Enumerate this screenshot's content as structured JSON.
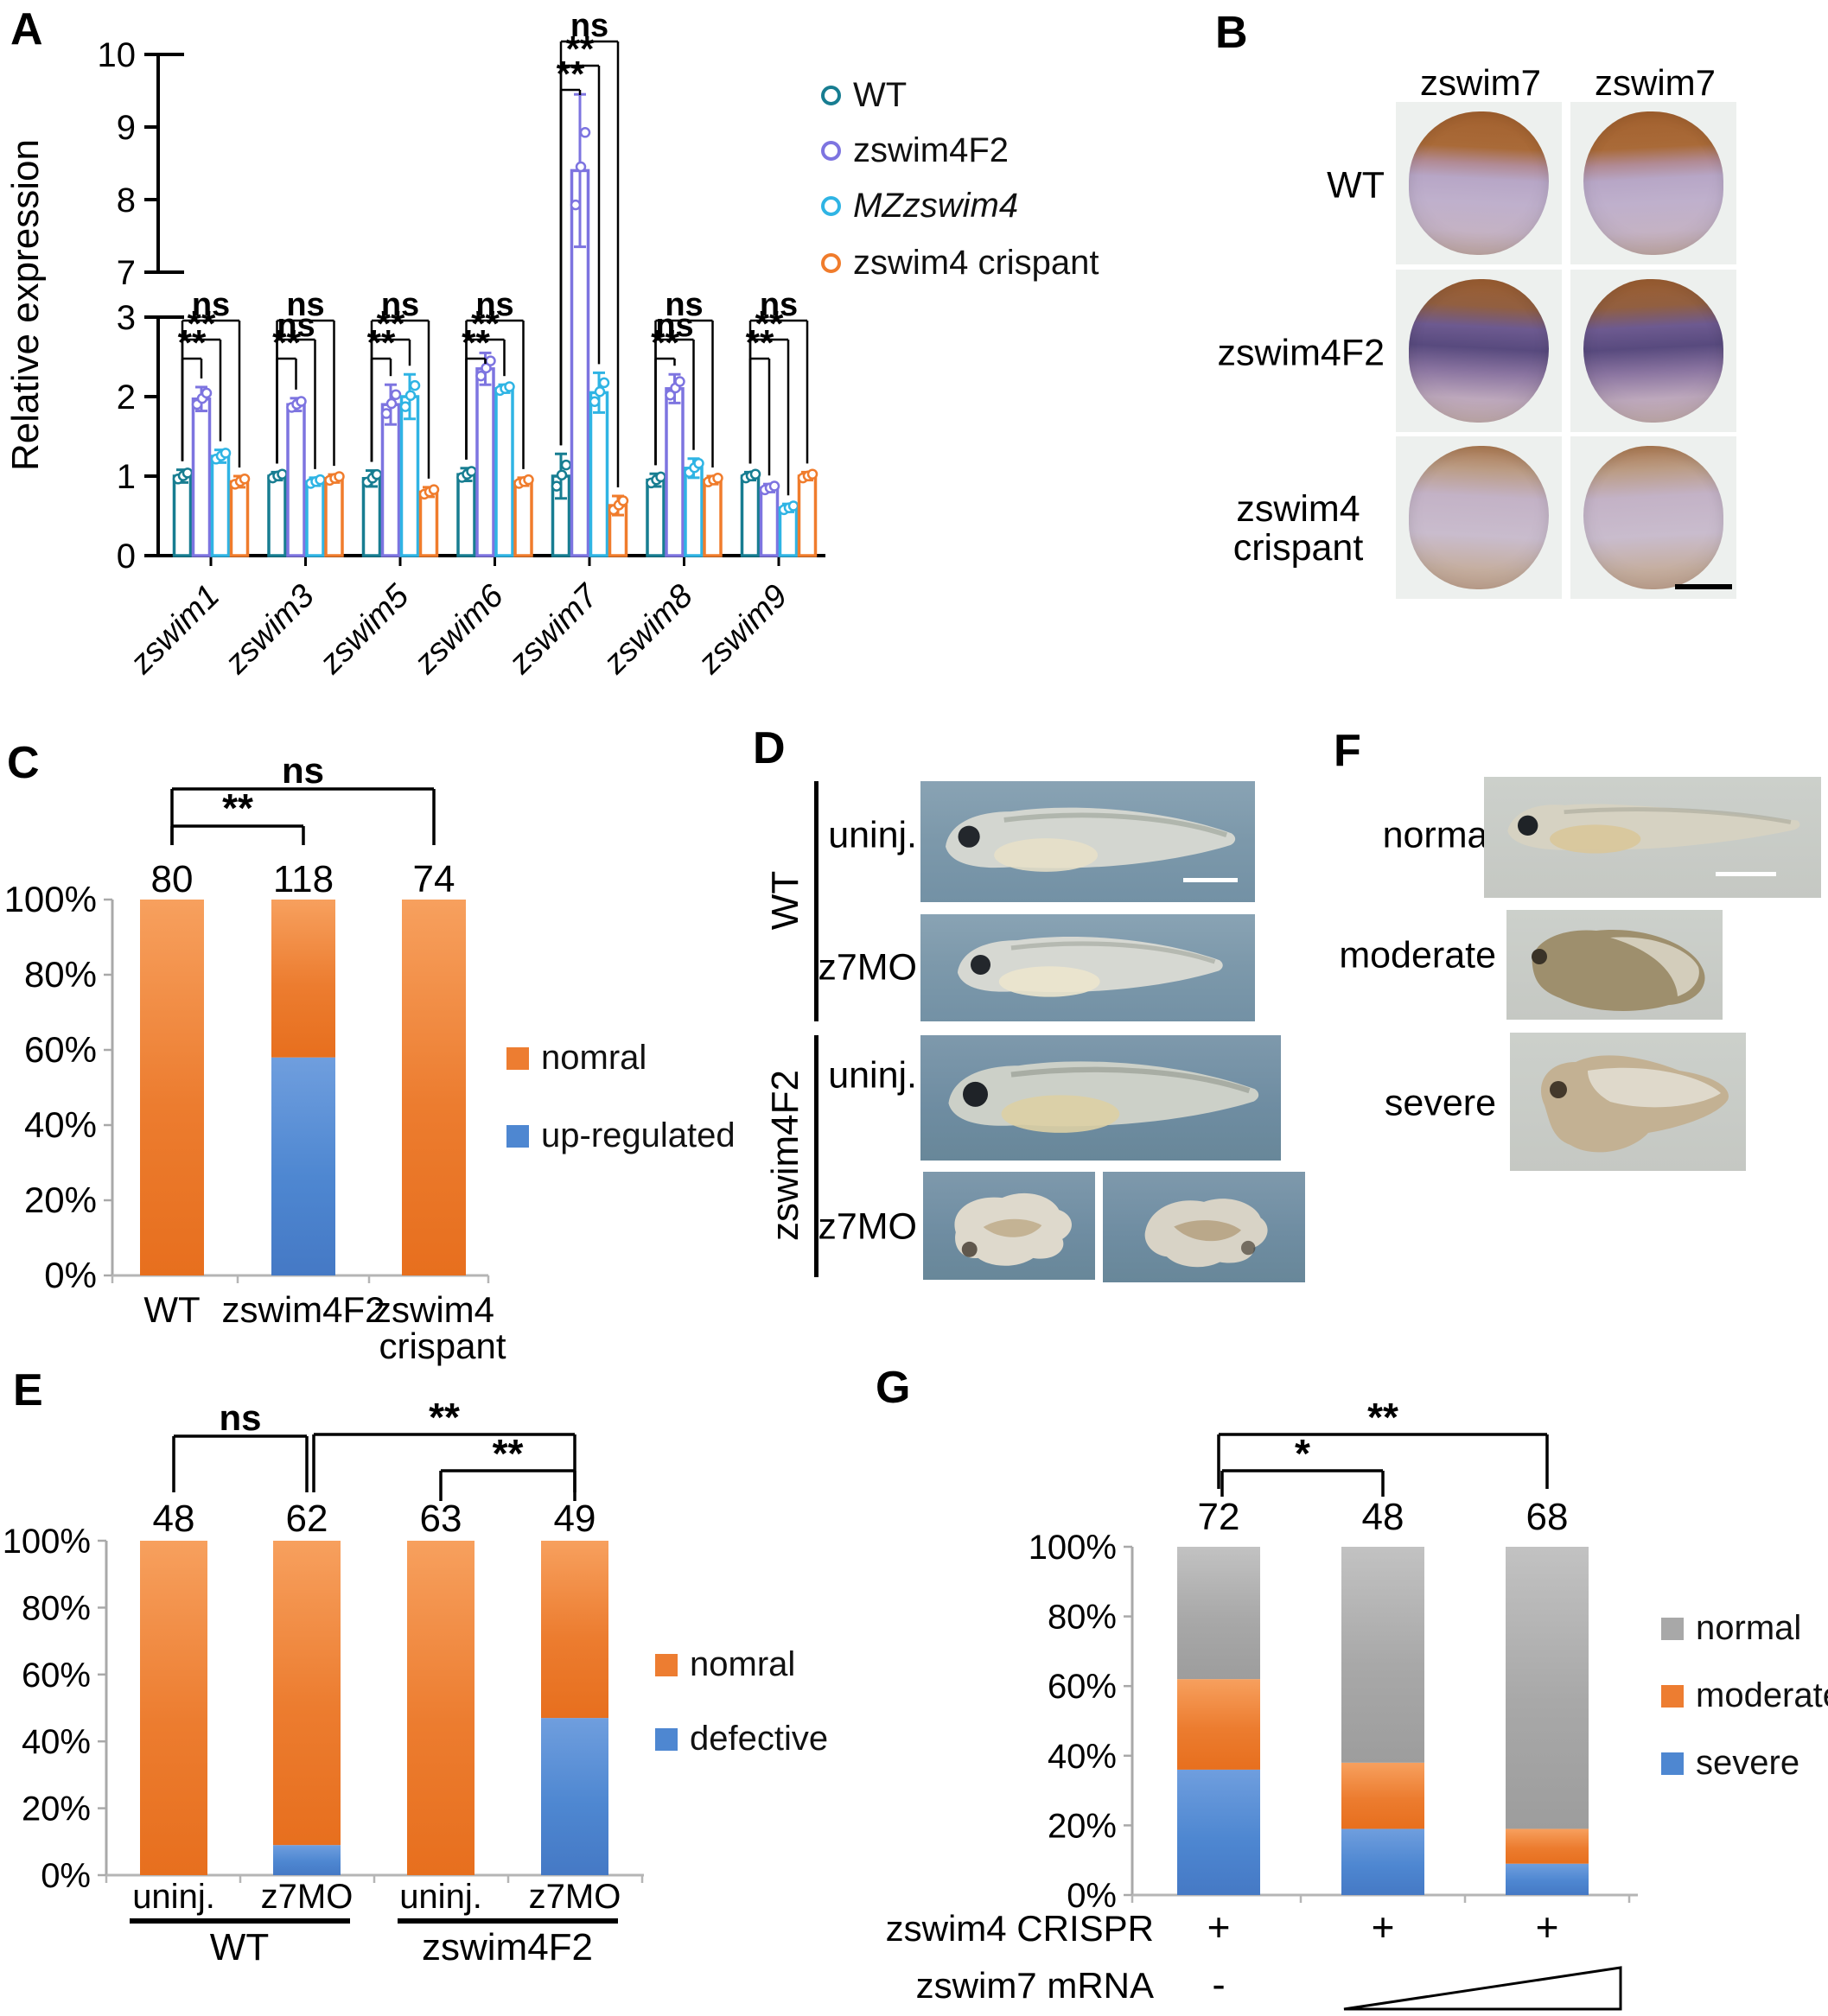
{
  "figure": {
    "panel_labels": {
      "a": "A",
      "b": "B",
      "c": "C",
      "d": "D",
      "e": "E",
      "f": "F",
      "g": "G"
    }
  },
  "colors": {
    "wt_teal": "#177d91",
    "zswim4f2_purple": "#7d74e0",
    "mzzswim4_cyan": "#2fb4e4",
    "crispant_orange": "#f07c2c",
    "bar_orange": "#ed7d31",
    "bar_blue": "#4e87d1",
    "bar_gray": "#a8a8a8"
  },
  "panel_a": {
    "ylabel": "Relative expression",
    "legend": [
      {
        "label": "WT",
        "color": "#177d91",
        "italic": false
      },
      {
        "label": "zswim4F2",
        "color": "#7d74e0",
        "italic": false
      },
      {
        "label": "MZzswim4",
        "color": "#2fb4e4",
        "italic": true
      },
      {
        "label": "zswim4 crispant",
        "color": "#f07c2c",
        "italic": false
      }
    ]
  },
  "panel_b": {
    "col_headers": [
      "zswim7",
      "zswim7"
    ],
    "row_labels": [
      "WT",
      "zswim4F2",
      "zswim4 crispant"
    ]
  },
  "panel_d": {
    "group_labels": [
      "WT",
      "zswim4F2"
    ],
    "row_labels": [
      "uninj.",
      "z7MO",
      "uninj.",
      "z7MO"
    ]
  },
  "panel_f": {
    "row_labels": [
      "normal",
      "moderate",
      "severe"
    ]
  },
  "chart_data": [
    {
      "id": "A",
      "type": "bar",
      "title": "",
      "xlabel": "",
      "ylabel": "Relative expression",
      "broken_axis": {
        "lower": [
          0,
          3
        ],
        "upper": [
          7,
          10
        ]
      },
      "yticks_lower": [
        0,
        1,
        2,
        3
      ],
      "yticks_upper": [
        7,
        8,
        9,
        10
      ],
      "categories": [
        "zswim1",
        "zswim3",
        "zswim5",
        "zswim6",
        "zswim7",
        "zswim8",
        "zswim9"
      ],
      "series": [
        {
          "name": "WT",
          "color": "#177d91",
          "values": [
            1.0,
            1.0,
            0.97,
            1.02,
            1.0,
            0.95,
            1.0
          ],
          "errors": [
            0.08,
            0.05,
            0.1,
            0.08,
            0.28,
            0.08,
            0.05
          ]
        },
        {
          "name": "zswim4F2",
          "color": "#7d74e0",
          "values": [
            1.97,
            1.9,
            1.9,
            2.35,
            8.4,
            2.1,
            0.85
          ],
          "errors": [
            0.15,
            0.08,
            0.25,
            0.2,
            1.05,
            0.18,
            0.05
          ]
        },
        {
          "name": "MZzswim4",
          "color": "#2fb4e4",
          "values": [
            1.25,
            0.93,
            2.0,
            2.1,
            2.05,
            1.1,
            0.6
          ],
          "errors": [
            0.08,
            0.05,
            0.28,
            0.05,
            0.25,
            0.12,
            0.05
          ]
        },
        {
          "name": "zswim4 crispant",
          "color": "#f07c2c",
          "values": [
            0.93,
            0.97,
            0.8,
            0.93,
            0.63,
            0.95,
            1.0
          ],
          "errors": [
            0.07,
            0.05,
            0.06,
            0.05,
            0.12,
            0.05,
            0.05
          ]
        }
      ],
      "significance_vs_wt": [
        [
          "**",
          "**",
          "ns"
        ],
        [
          "**",
          "ns",
          "ns"
        ],
        [
          "**",
          "**",
          "ns"
        ],
        [
          "**",
          "**",
          "ns"
        ],
        [
          "**",
          "**",
          "ns"
        ],
        [
          "**",
          "ns",
          "ns"
        ],
        [
          "**",
          "**",
          "ns"
        ]
      ]
    },
    {
      "id": "C",
      "type": "stacked-bar-percent",
      "categories": [
        "WT",
        "zswim4F2",
        "zswim4 crispant"
      ],
      "counts": [
        80,
        118,
        74
      ],
      "stack": [
        {
          "name": "up-regulated",
          "color": "#4e87d1",
          "values": [
            0,
            58,
            0
          ]
        },
        {
          "name": "nomral",
          "color": "#ed7d31",
          "values": [
            100,
            42,
            100
          ]
        }
      ],
      "legend": [
        "nomral",
        "up-regulated"
      ],
      "yticks": [
        "0%",
        "20%",
        "40%",
        "60%",
        "80%",
        "100%"
      ],
      "brackets": [
        {
          "from": 0,
          "to": 2,
          "label": "ns"
        },
        {
          "from": 0,
          "to": 1,
          "label": "**"
        }
      ]
    },
    {
      "id": "E",
      "type": "stacked-bar-percent",
      "categories": [
        "uninj.",
        "z7MO",
        "uninj.",
        "z7MO"
      ],
      "group_labels": [
        "WT",
        "zswim4F2"
      ],
      "counts": [
        48,
        62,
        63,
        49
      ],
      "stack": [
        {
          "name": "defective",
          "color": "#4e87d1",
          "values": [
            0,
            9,
            0,
            47
          ]
        },
        {
          "name": "nomral",
          "color": "#ed7d31",
          "values": [
            100,
            91,
            100,
            53
          ]
        }
      ],
      "legend": [
        "nomral",
        "defective"
      ],
      "yticks": [
        "0%",
        "20%",
        "40%",
        "60%",
        "80%",
        "100%"
      ],
      "brackets": [
        {
          "from": 0,
          "to": 1,
          "label": "ns"
        },
        {
          "from": 1,
          "to": 3,
          "label": "**"
        },
        {
          "from": 2,
          "to": 3,
          "label": "**"
        }
      ]
    },
    {
      "id": "G",
      "type": "stacked-bar-percent",
      "counts": [
        72,
        48,
        68
      ],
      "stack": [
        {
          "name": "severe",
          "color": "#4e87d1",
          "values": [
            36,
            19,
            9
          ]
        },
        {
          "name": "moderate",
          "color": "#ed7d31",
          "values": [
            26,
            19,
            10
          ]
        },
        {
          "name": "normal",
          "color": "#a8a8a8",
          "values": [
            38,
            62,
            81
          ]
        }
      ],
      "legend": [
        "normal",
        "moderate",
        "severe"
      ],
      "yticks": [
        "0%",
        "20%",
        "40%",
        "60%",
        "80%",
        "100%"
      ],
      "brackets": [
        {
          "from": 0,
          "to": 2,
          "label": "**"
        },
        {
          "from": 0,
          "to": 1,
          "label": "*"
        }
      ],
      "axis_rows": [
        {
          "label": "zswim4 CRISPR",
          "values": [
            "+",
            "+",
            "+"
          ],
          "ramp": false
        },
        {
          "label": "zswim7 mRNA",
          "values": [
            "-",
            "",
            ""
          ],
          "ramp": true
        }
      ]
    }
  ]
}
